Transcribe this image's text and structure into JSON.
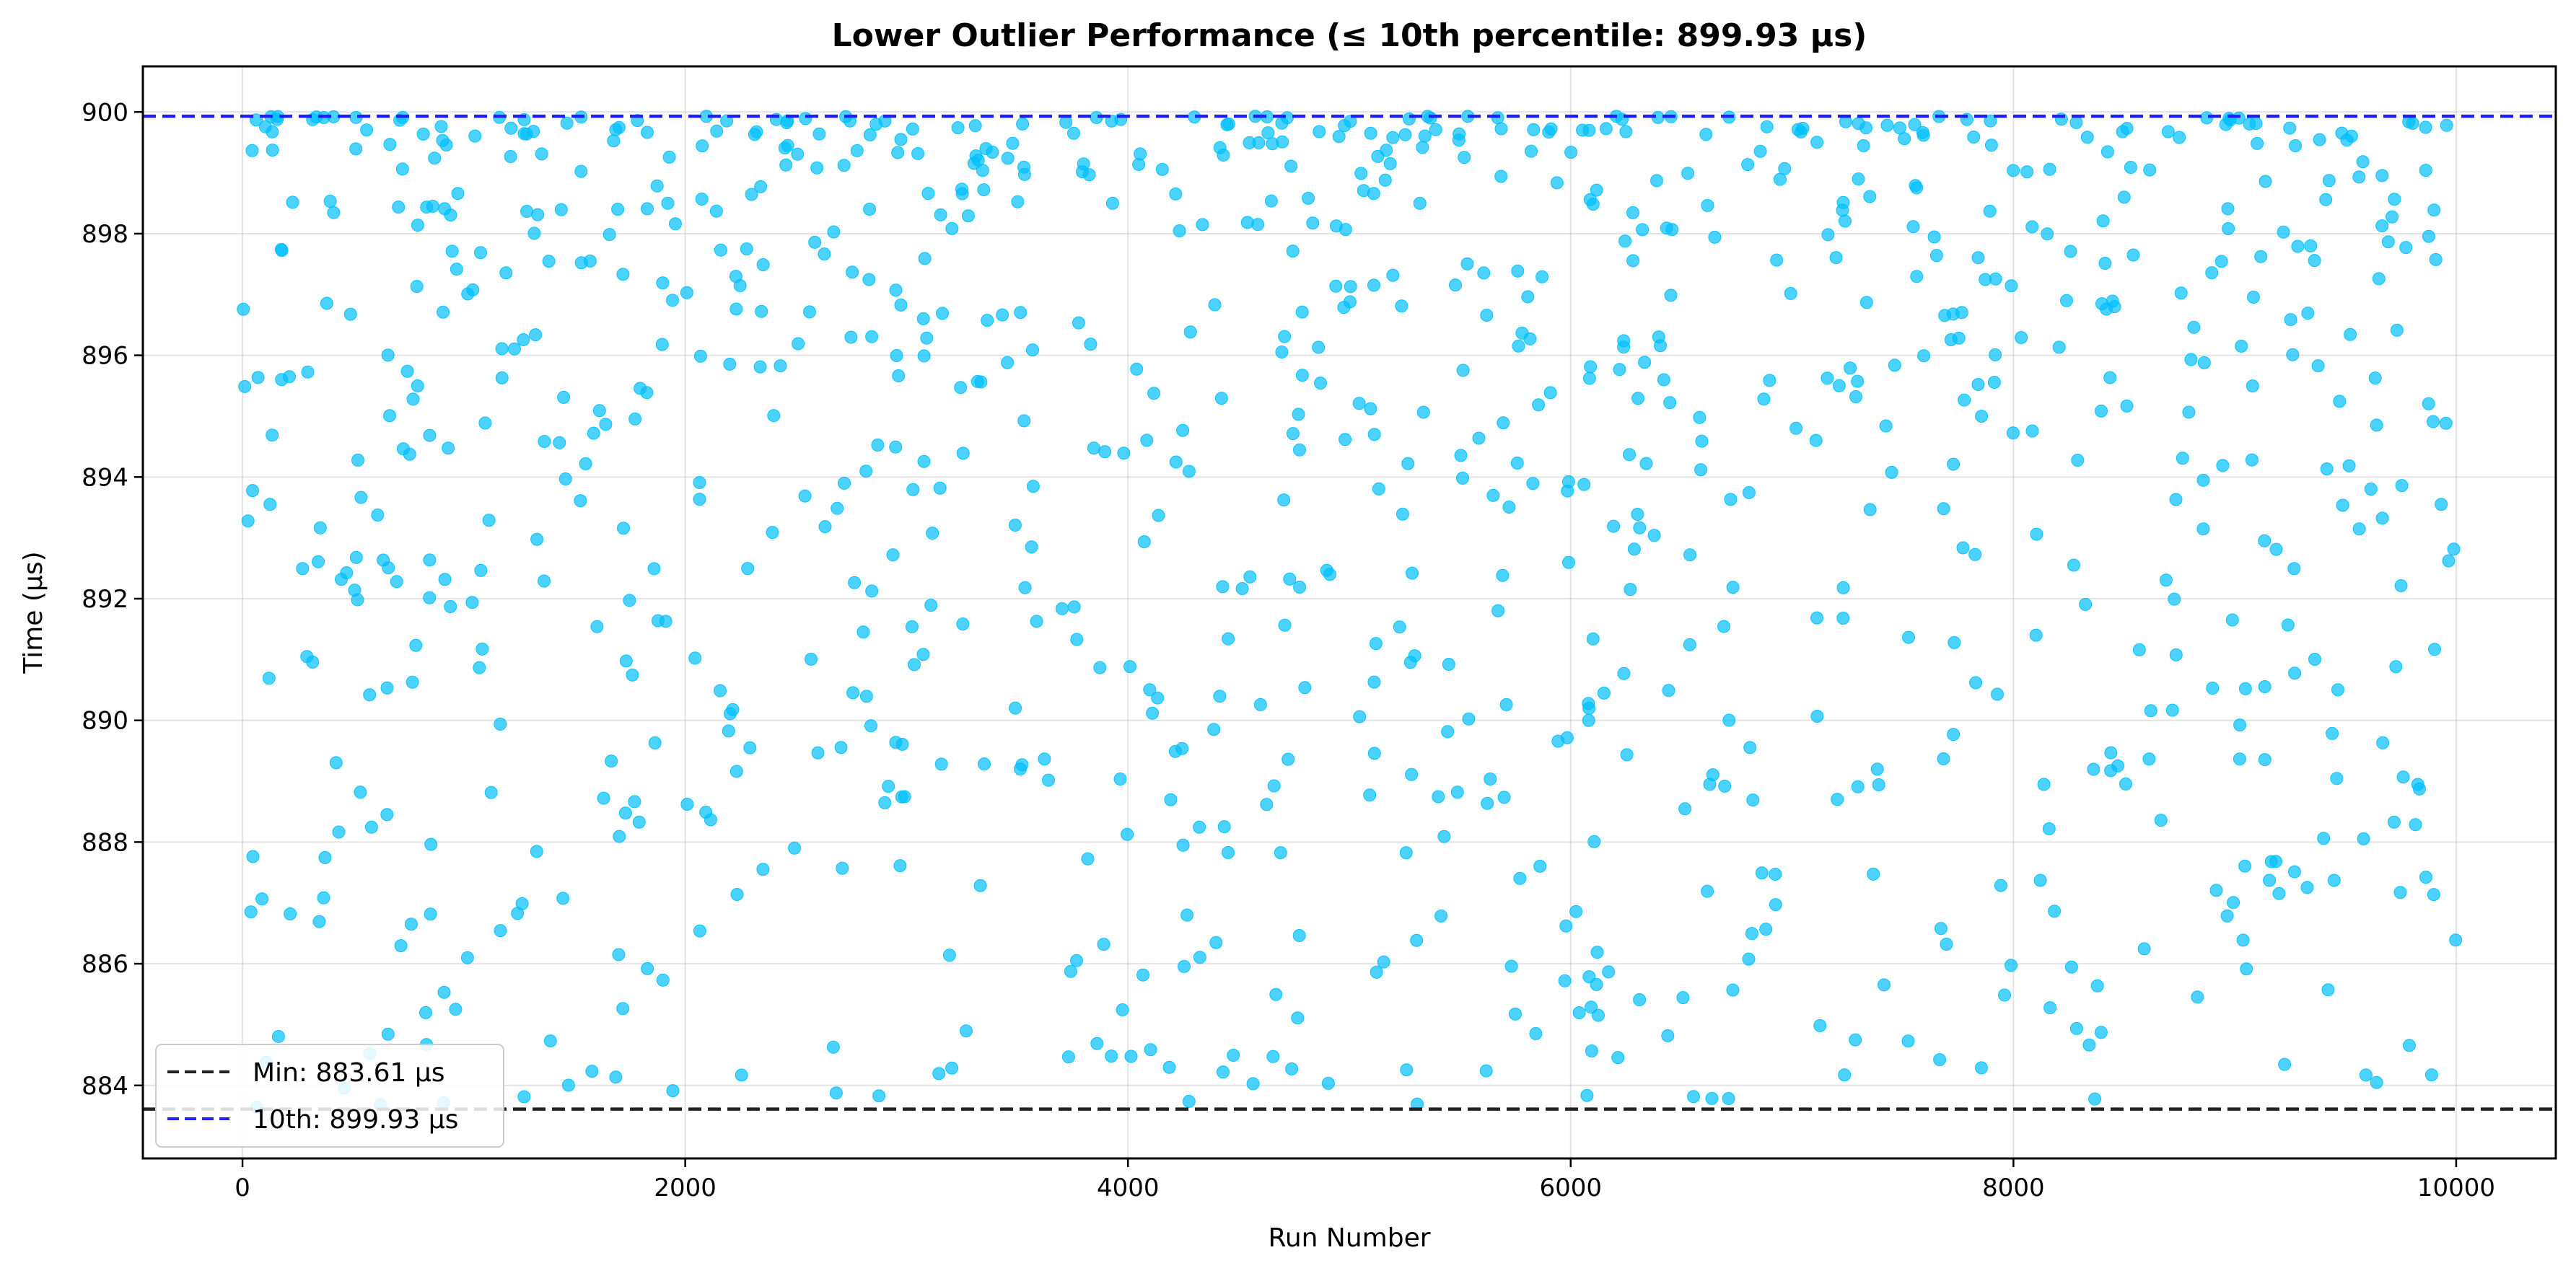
{
  "chart_data": {
    "type": "scatter",
    "title": "Lower Outlier Performance (≤ 10th percentile: 899.93 µs)",
    "xlabel": "Run Number",
    "ylabel": "Time (µs)",
    "xlim": [
      -450,
      10450
    ],
    "ylim": [
      882.8,
      900.75
    ],
    "xticks": [
      0,
      2000,
      4000,
      6000,
      8000,
      10000
    ],
    "yticks": [
      884,
      886,
      888,
      890,
      892,
      894,
      896,
      898,
      900
    ],
    "grid": true,
    "legend_position": "lower-left",
    "marker_color": "#00BFFF",
    "reference_lines": [
      {
        "label": "Min: 883.61 µs",
        "value": 883.61,
        "color": "#222222",
        "style": "dashed"
      },
      {
        "label": "10th: 899.93 µs",
        "value": 899.93,
        "color": "#1f1fff",
        "style": "dashed"
      }
    ],
    "point_count": 1000,
    "y_band": [
      883.61,
      899.93
    ],
    "x_range": [
      0,
      9999
    ]
  }
}
